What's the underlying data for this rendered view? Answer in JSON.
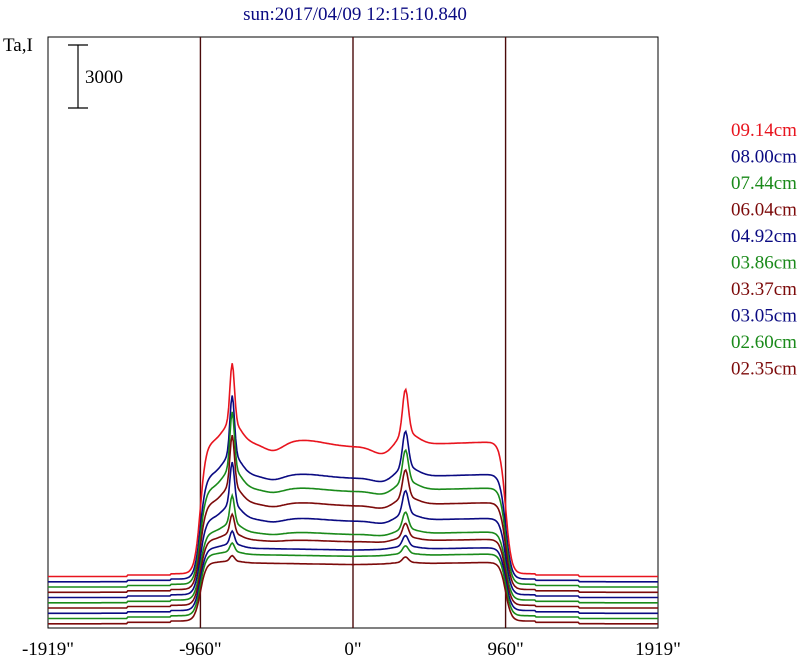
{
  "chart_data": {
    "type": "line",
    "title": "sun:2017/04/09 12:15:10.840",
    "ylabel": "Ta,I",
    "scale_bar_label": "3000",
    "scale_bar_value": 3000,
    "xlim": [
      -1919,
      1919
    ],
    "x_ticks": [
      {
        "value": -1919,
        "label": "-1919\""
      },
      {
        "value": -960,
        "label": "-960\""
      },
      {
        "value": 0,
        "label": "0\""
      },
      {
        "value": 960,
        "label": "960\""
      },
      {
        "value": 1919,
        "label": "1919\""
      }
    ],
    "vlines": [
      -960,
      0,
      960
    ],
    "legend_position": "right",
    "series": [
      {
        "name": "09.14cm",
        "color": "#e8141e",
        "baseline": 2500,
        "disk_level": 6300,
        "limb_peak": 2800,
        "plage_peak": 2100,
        "core_dip": 450
      },
      {
        "name": "08.00cm",
        "color": "#0a0a82",
        "baseline": 2250,
        "disk_level": 5000,
        "limb_peak": 2800,
        "plage_peak": 1700,
        "core_dip": 250
      },
      {
        "name": "07.44cm",
        "color": "#1a8a1a",
        "baseline": 2000,
        "disk_level": 4600,
        "limb_peak": 2700,
        "plage_peak": 1500,
        "core_dip": 200
      },
      {
        "name": "06.04cm",
        "color": "#7c0a0a",
        "baseline": 1750,
        "disk_level": 4150,
        "limb_peak": 2400,
        "plage_peak": 1300,
        "core_dip": 180
      },
      {
        "name": "04.92cm",
        "color": "#0a0a82",
        "baseline": 1500,
        "disk_level": 3650,
        "limb_peak": 2000,
        "plage_peak": 1100,
        "core_dip": 160
      },
      {
        "name": "03.86cm",
        "color": "#1a8a1a",
        "baseline": 1250,
        "disk_level": 3250,
        "limb_peak": 1300,
        "plage_peak": 800,
        "core_dip": 100
      },
      {
        "name": "03.37cm",
        "color": "#7c0a0a",
        "baseline": 1000,
        "disk_level": 3150,
        "limb_peak": 900,
        "plage_peak": 650,
        "core_dip": 60
      },
      {
        "name": "03.05cm",
        "color": "#0a0a82",
        "baseline": 750,
        "disk_level": 3000,
        "limb_peak": 600,
        "plage_peak": 500,
        "core_dip": 0
      },
      {
        "name": "02.60cm",
        "color": "#1a8a1a",
        "baseline": 500,
        "disk_level": 2950,
        "limb_peak": 400,
        "plage_peak": 350,
        "core_dip": 0
      },
      {
        "name": "02.35cm",
        "color": "#7c0a0a",
        "baseline": 250,
        "disk_level": 2800,
        "limb_peak": 250,
        "plage_peak": 250,
        "core_dip": 0
      }
    ]
  }
}
